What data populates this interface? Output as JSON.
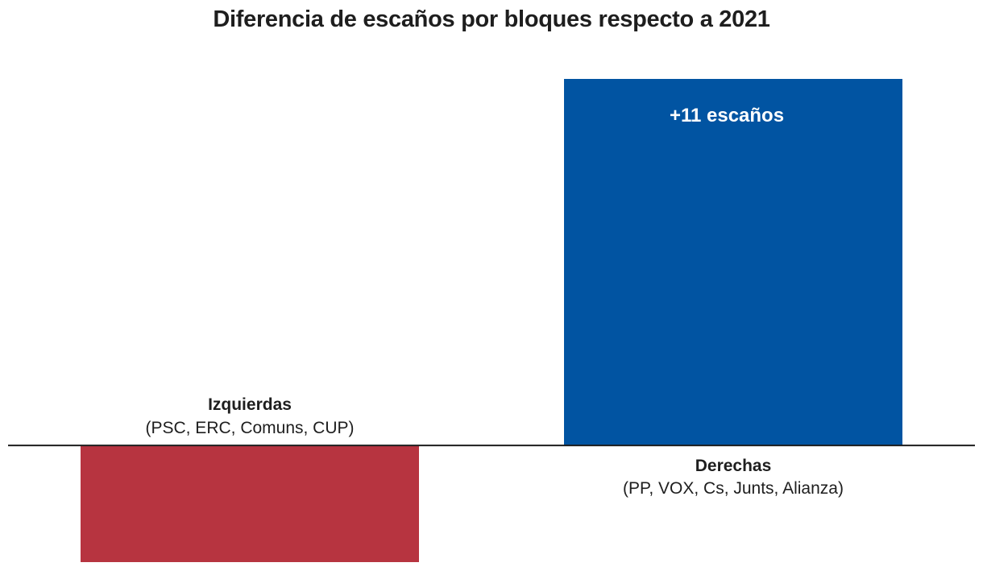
{
  "chart_data": {
    "type": "bar",
    "title": "Diferencia de escaños por bloques respecto a 2021",
    "xlabel": "",
    "ylabel": "",
    "categories": [
      "Izquierdas",
      "Derechas"
    ],
    "category_parties": [
      "(PSC, ERC, Comuns, CUP)",
      "(PP, VOX, Cs, Junts, Alianza)"
    ],
    "values": [
      -3.5,
      11
    ],
    "data_labels": [
      "",
      "+11 escaños"
    ],
    "colors": [
      "#b73440",
      "#0154a2"
    ],
    "ylim": [
      -3.5,
      11
    ],
    "grid": false,
    "legend": "none"
  }
}
